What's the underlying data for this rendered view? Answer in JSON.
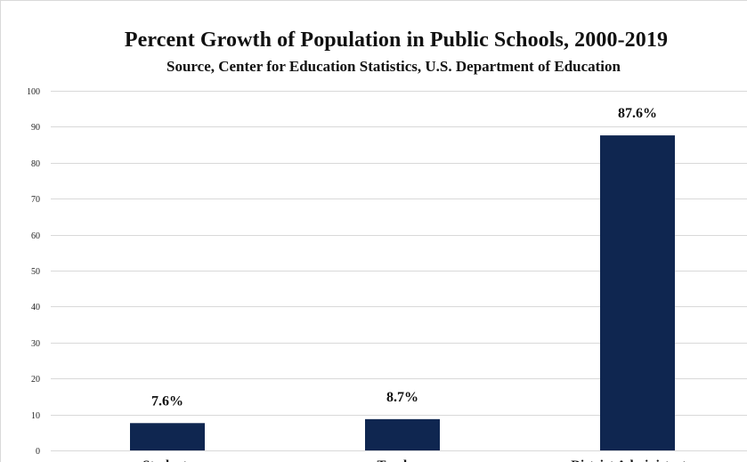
{
  "chart_data": {
    "type": "bar",
    "title": "Percent Growth of Population in Public Schools, 2000-2019",
    "subtitle": "Source, Center for Education Statistics, U.S. Department of Education",
    "categories": [
      "Students",
      "Teachers",
      "District Administrators"
    ],
    "values": [
      7.6,
      8.7,
      87.6
    ],
    "data_labels": [
      "7.6%",
      "8.7%",
      "87.6%"
    ],
    "xlabel": "",
    "ylabel": "",
    "ylim": [
      0,
      100
    ],
    "yticks": [
      0,
      10,
      20,
      30,
      40,
      50,
      60,
      70,
      80,
      90,
      100
    ],
    "grid": true,
    "bar_color": "#0f2650",
    "grid_color": "#d9d9d9"
  }
}
